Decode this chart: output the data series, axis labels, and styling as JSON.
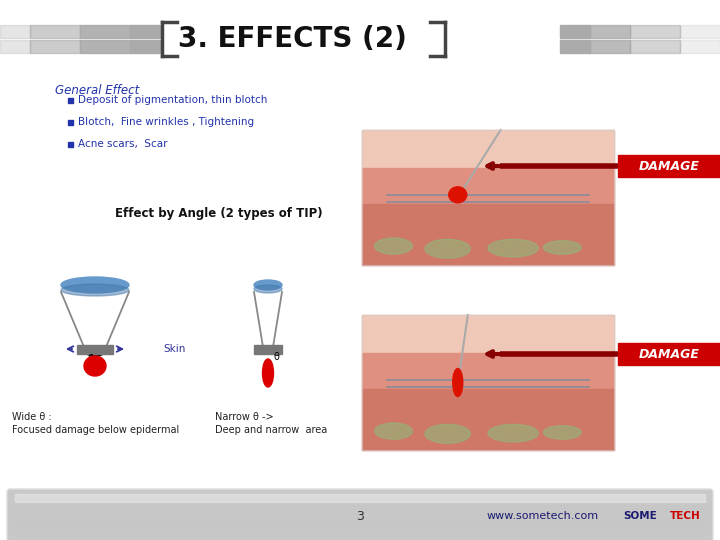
{
  "title": "3. EFFECTS (2)",
  "title_fontsize": 20,
  "title_color": "#111111",
  "bg_color": "#ffffff",
  "section_label": "General Effect",
  "section_color": "#2233aa",
  "bullets": [
    "Deposit of pigmentation, thin blotch",
    "Blotch,  Fine wrinkles , Tightening",
    "Acne scars,  Scar"
  ],
  "bullet_color": "#2233aa",
  "effect_title": "Effect by Angle (2 types of TIP)",
  "wide_label": "Wide θ :\nFocused damage below epidermal",
  "narrow_label": "Narrow θ ->\nDeep and narrow  area",
  "skin_label": "Skin",
  "damage_label": "DAMAGE",
  "damage_bg": "#cc0000",
  "damage_text_color": "#ffffff",
  "page_number": "3",
  "website": "www.sometech.com",
  "brand_some": "SOME",
  "brand_tech": "TECH",
  "brand_color_some": "#1a1a6e",
  "brand_color_tech": "#cc0000"
}
